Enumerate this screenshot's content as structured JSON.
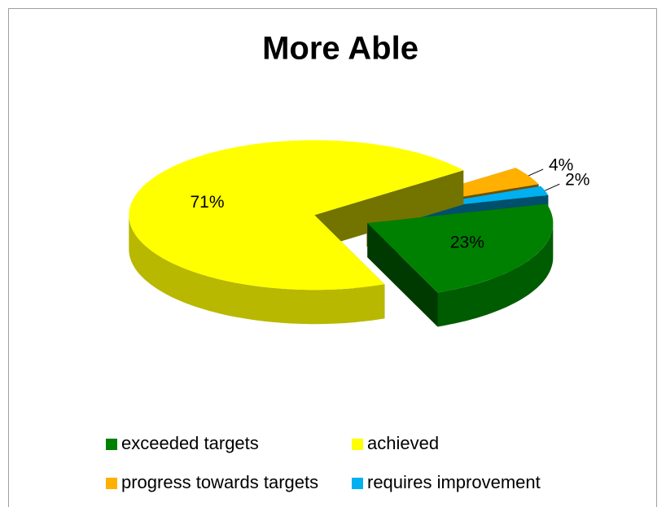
{
  "chart_data": {
    "type": "pie",
    "title": "More Able",
    "categories": [
      "exceeded targets",
      "achieved",
      "progress towards targets",
      "requires improvement"
    ],
    "values": [
      23,
      71,
      4,
      2
    ],
    "value_labels": [
      "23%",
      "71%",
      "4%",
      "2%"
    ],
    "colors": [
      "#008000",
      "#ffff00",
      "#ffb000",
      "#00b0f0"
    ],
    "legend": "bottom"
  }
}
